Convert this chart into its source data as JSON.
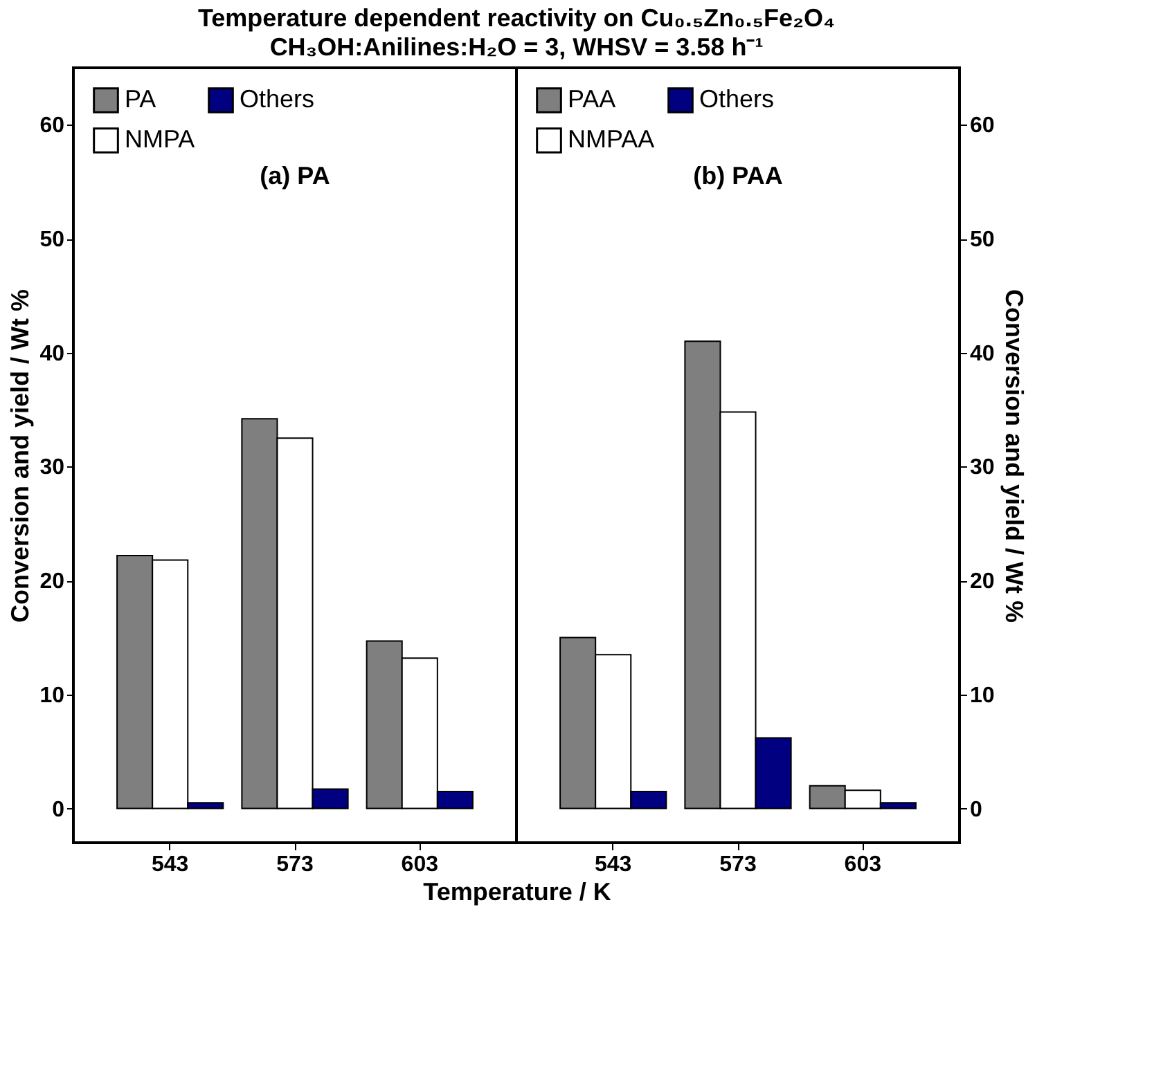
{
  "chart_data": [
    {
      "type": "bar",
      "title": "Temperature dependent reactivity on Cu₀.₅Zn₀.₅Fe₂O₄",
      "subtitle": "CH₃OH:Anilines:H₂O = 3, WHSV = 3.58 h⁻¹",
      "xlabel": "Temperature / K",
      "ylabel": "Conversion and yield / Wt %",
      "annotations": [
        "(a) PA"
      ],
      "categories": [
        "543",
        "573",
        "603"
      ],
      "series": [
        {
          "name": "PA",
          "color": "#7f7f7f",
          "values": [
            22.2,
            34.2,
            14.7
          ]
        },
        {
          "name": "NMPA",
          "color": "#ffffff",
          "values": [
            21.8,
            32.5,
            13.2
          ]
        },
        {
          "name": "Others",
          "color": "#000080",
          "values": [
            0.5,
            1.7,
            1.5
          ]
        }
      ],
      "ylim": [
        -3,
        65
      ],
      "yticks": [
        0,
        10,
        20,
        30,
        40,
        50,
        60
      ],
      "legend": "top left"
    },
    {
      "type": "bar",
      "y2label": "Conversion and yield / Wt %",
      "annotations": [
        "(b) PAA"
      ],
      "categories": [
        "543",
        "573",
        "603"
      ],
      "series": [
        {
          "name": "PAA",
          "color": "#7f7f7f",
          "values": [
            15.0,
            41.0,
            2.0
          ]
        },
        {
          "name": "NMPAA",
          "color": "#ffffff",
          "values": [
            13.5,
            34.8,
            1.6
          ]
        },
        {
          "name": "Others",
          "color": "#000080",
          "values": [
            1.5,
            6.2,
            0.5
          ]
        }
      ],
      "ylim": [
        -3,
        65
      ],
      "yticks": [
        0,
        10,
        20,
        30,
        40,
        50,
        60
      ],
      "legend": "top left"
    }
  ]
}
